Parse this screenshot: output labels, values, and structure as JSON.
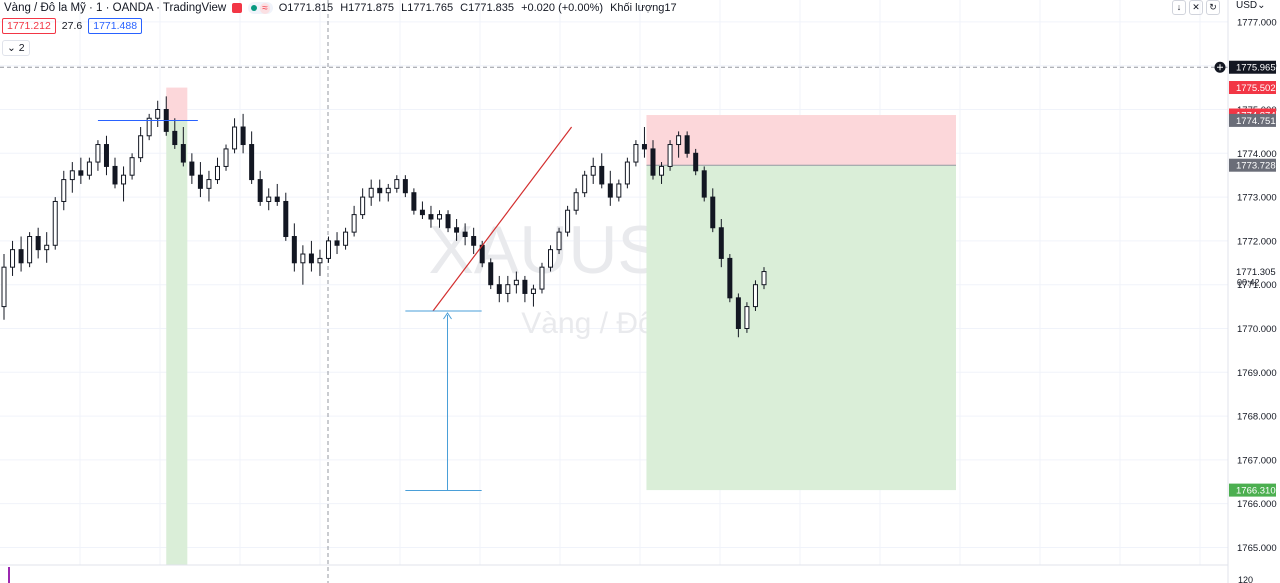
{
  "header": {
    "symbol_label": "Vàng / Đô la Mỹ · 1 · OANDA · TradingView",
    "open": "O1771.815",
    "high": "H1771.875",
    "low": "L1771.765",
    "close": "C1771.835",
    "change": "+0.020 (+0.00%)",
    "volume": "Khối lượng17"
  },
  "quote": {
    "sell": "1771.212",
    "spread": "27.6",
    "buy": "1771.488"
  },
  "indicators_toggle": "2",
  "toolbar": {
    "currency": "USD"
  },
  "colors": {
    "bull": "#131722",
    "bear": "#131722",
    "stop_zone": "#fcd7da",
    "target_zone": "#daeed8",
    "trendline": "#d32f2f",
    "measure": "#4a9fd8",
    "hline": "#2962ff"
  },
  "chart_data": {
    "type": "candlestick",
    "watermark": "XAUUSD, 1",
    "watermark_sub": "Vàng / Đô la Mỹ",
    "ylim": [
      1764.6,
      1777.5
    ],
    "y_ticks": [
      "1777.000",
      "1776.000",
      "1775.000",
      "1774.000",
      "1773.000",
      "1772.000",
      "1771.000",
      "1770.000",
      "1769.000",
      "1768.000",
      "1767.000",
      "1766.000",
      "1765.000"
    ],
    "price_labels": [
      {
        "value": "1775.965",
        "price": 1775.965,
        "style": "dark"
      },
      {
        "value": "1775.502",
        "price": 1775.502,
        "style": "red"
      },
      {
        "value": "1774.874",
        "price": 1774.874,
        "style": "red"
      },
      {
        "value": "1774.751",
        "price": 1774.751,
        "style": "gray"
      },
      {
        "value": "1773.728",
        "price": 1773.728,
        "style": "gray"
      },
      {
        "value": "1771.305",
        "price": 1771.305,
        "style": "plain"
      },
      {
        "value": "1766.310",
        "price": 1766.31,
        "style": "green"
      }
    ],
    "countdown": "00:42",
    "bottom_tick": "120",
    "candles": [
      [
        1770.5,
        1771.7,
        1770.2,
        1771.4
      ],
      [
        1771.4,
        1772.0,
        1771.2,
        1771.8
      ],
      [
        1771.8,
        1772.1,
        1771.3,
        1771.5
      ],
      [
        1771.5,
        1772.2,
        1771.4,
        1772.1
      ],
      [
        1772.1,
        1772.3,
        1771.6,
        1771.8
      ],
      [
        1771.8,
        1772.2,
        1771.5,
        1771.9
      ],
      [
        1771.9,
        1773.0,
        1771.8,
        1772.9
      ],
      [
        1772.9,
        1773.6,
        1772.7,
        1773.4
      ],
      [
        1773.4,
        1773.8,
        1773.1,
        1773.6
      ],
      [
        1773.6,
        1773.9,
        1773.3,
        1773.5
      ],
      [
        1773.5,
        1773.9,
        1773.4,
        1773.8
      ],
      [
        1773.8,
        1774.3,
        1773.6,
        1774.2
      ],
      [
        1774.2,
        1774.4,
        1773.5,
        1773.7
      ],
      [
        1773.7,
        1773.9,
        1773.2,
        1773.3
      ],
      [
        1773.3,
        1773.7,
        1772.9,
        1773.5
      ],
      [
        1773.5,
        1774.0,
        1773.4,
        1773.9
      ],
      [
        1773.9,
        1774.6,
        1773.8,
        1774.4
      ],
      [
        1774.4,
        1774.9,
        1774.3,
        1774.8
      ],
      [
        1774.8,
        1775.2,
        1774.6,
        1775.0
      ],
      [
        1775.0,
        1775.3,
        1774.4,
        1774.5
      ],
      [
        1774.5,
        1774.8,
        1774.1,
        1774.2
      ],
      [
        1774.2,
        1774.6,
        1773.7,
        1773.8
      ],
      [
        1773.8,
        1774.0,
        1773.3,
        1773.5
      ],
      [
        1773.5,
        1773.8,
        1773.0,
        1773.2
      ],
      [
        1773.2,
        1773.6,
        1772.9,
        1773.4
      ],
      [
        1773.4,
        1773.9,
        1773.3,
        1773.7
      ],
      [
        1773.7,
        1774.2,
        1773.6,
        1774.1
      ],
      [
        1774.1,
        1774.8,
        1774.0,
        1774.6
      ],
      [
        1774.6,
        1774.9,
        1774.0,
        1774.2
      ],
      [
        1774.2,
        1774.5,
        1773.3,
        1773.4
      ],
      [
        1773.4,
        1773.6,
        1772.8,
        1772.9
      ],
      [
        1772.9,
        1773.2,
        1772.7,
        1773.0
      ],
      [
        1773.0,
        1773.3,
        1772.8,
        1772.9
      ],
      [
        1772.9,
        1773.1,
        1772.0,
        1772.1
      ],
      [
        1772.1,
        1772.4,
        1771.3,
        1771.5
      ],
      [
        1771.5,
        1771.9,
        1771.0,
        1771.7
      ],
      [
        1771.7,
        1772.0,
        1771.3,
        1771.5
      ],
      [
        1771.5,
        1771.8,
        1771.2,
        1771.6
      ],
      [
        1771.6,
        1772.1,
        1771.5,
        1772.0
      ],
      [
        1772.0,
        1772.2,
        1771.7,
        1771.9
      ],
      [
        1771.9,
        1772.3,
        1771.8,
        1772.2
      ],
      [
        1772.2,
        1772.8,
        1772.1,
        1772.6
      ],
      [
        1772.6,
        1773.2,
        1772.5,
        1773.0
      ],
      [
        1773.0,
        1773.4,
        1772.8,
        1773.2
      ],
      [
        1773.2,
        1773.4,
        1772.9,
        1773.1
      ],
      [
        1773.1,
        1773.3,
        1772.9,
        1773.2
      ],
      [
        1773.2,
        1773.5,
        1773.1,
        1773.4
      ],
      [
        1773.4,
        1773.5,
        1773.0,
        1773.1
      ],
      [
        1773.1,
        1773.2,
        1772.6,
        1772.7
      ],
      [
        1772.7,
        1772.9,
        1772.5,
        1772.6
      ],
      [
        1772.6,
        1772.8,
        1772.3,
        1772.5
      ],
      [
        1772.5,
        1772.7,
        1772.3,
        1772.6
      ],
      [
        1772.6,
        1772.7,
        1772.2,
        1772.3
      ],
      [
        1772.3,
        1772.5,
        1772.0,
        1772.2
      ],
      [
        1772.2,
        1772.4,
        1771.9,
        1772.1
      ],
      [
        1772.1,
        1772.3,
        1771.7,
        1771.9
      ],
      [
        1771.9,
        1772.0,
        1771.4,
        1771.5
      ],
      [
        1771.5,
        1771.6,
        1770.9,
        1771.0
      ],
      [
        1771.0,
        1771.2,
        1770.6,
        1770.8
      ],
      [
        1770.8,
        1771.2,
        1770.6,
        1771.0
      ],
      [
        1771.0,
        1771.3,
        1770.8,
        1771.1
      ],
      [
        1771.1,
        1771.2,
        1770.6,
        1770.8
      ],
      [
        1770.8,
        1771.0,
        1770.5,
        1770.9
      ],
      [
        1770.9,
        1771.5,
        1770.8,
        1771.4
      ],
      [
        1771.4,
        1771.9,
        1771.3,
        1771.8
      ],
      [
        1771.8,
        1772.3,
        1771.7,
        1772.2
      ],
      [
        1772.2,
        1772.8,
        1772.1,
        1772.7
      ],
      [
        1772.7,
        1773.2,
        1772.6,
        1773.1
      ],
      [
        1773.1,
        1773.6,
        1773.0,
        1773.5
      ],
      [
        1773.5,
        1773.9,
        1773.3,
        1773.7
      ],
      [
        1773.7,
        1774.0,
        1773.2,
        1773.3
      ],
      [
        1773.3,
        1773.6,
        1772.8,
        1773.0
      ],
      [
        1773.0,
        1773.4,
        1772.9,
        1773.3
      ],
      [
        1773.3,
        1773.9,
        1773.2,
        1773.8
      ],
      [
        1773.8,
        1774.3,
        1773.7,
        1774.2
      ],
      [
        1774.2,
        1774.6,
        1773.9,
        1774.1
      ],
      [
        1774.1,
        1774.3,
        1773.4,
        1773.5
      ],
      [
        1773.5,
        1773.8,
        1773.3,
        1773.7
      ],
      [
        1773.7,
        1774.3,
        1773.6,
        1774.2
      ],
      [
        1774.2,
        1774.5,
        1773.9,
        1774.4
      ],
      [
        1774.4,
        1774.5,
        1773.9,
        1774.0
      ],
      [
        1774.0,
        1774.1,
        1773.5,
        1773.6
      ],
      [
        1773.6,
        1773.7,
        1772.9,
        1773.0
      ],
      [
        1773.0,
        1773.2,
        1772.2,
        1772.3
      ],
      [
        1772.3,
        1772.5,
        1771.4,
        1771.6
      ],
      [
        1771.6,
        1771.7,
        1770.6,
        1770.7
      ],
      [
        1770.7,
        1770.8,
        1769.8,
        1770.0
      ],
      [
        1770.0,
        1770.6,
        1769.9,
        1770.5
      ],
      [
        1770.5,
        1771.1,
        1770.4,
        1771.0
      ],
      [
        1771.0,
        1771.4,
        1770.9,
        1771.3
      ]
    ],
    "drawings": {
      "left_short_zone": {
        "start_index": 19,
        "end_index": 21,
        "entry": 1774.75,
        "stop": 1775.5,
        "target": 1764.6
      },
      "hline_left": {
        "start_index": 11,
        "end_index": 22,
        "price": 1774.75
      },
      "trendline": {
        "from_index": 50,
        "from_price": 1770.4,
        "to_index": 66,
        "to_price": 1774.6
      },
      "measure": {
        "index": 51,
        "from_price": 1766.3,
        "to_price": 1770.4,
        "left_index": 47,
        "right_index": 55
      },
      "right_short_zone": {
        "start_index": 75,
        "end_index": 95,
        "entry": 1773.728,
        "stop": 1774.874,
        "target": 1766.31
      }
    }
  }
}
